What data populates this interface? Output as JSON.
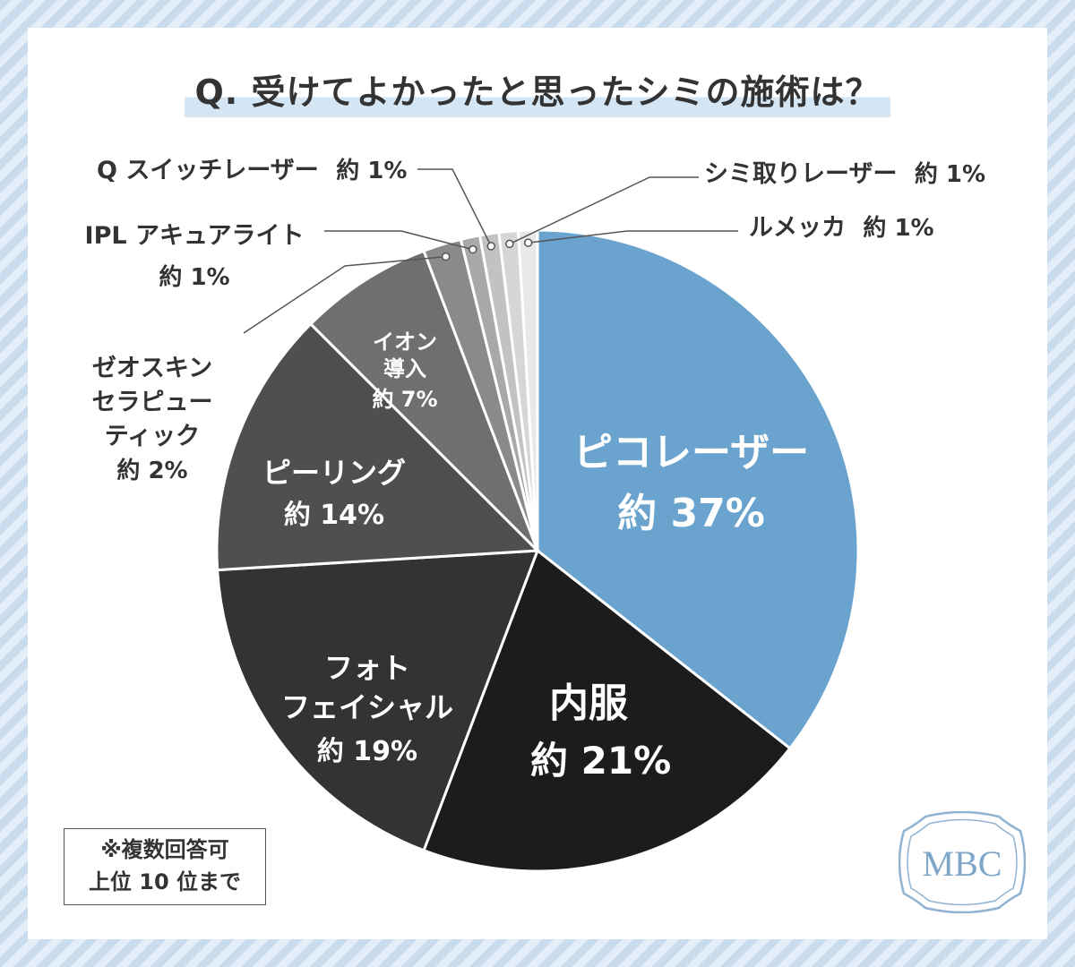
{
  "title": "Q. 受けてよかったと思ったシミの施術は？",
  "note": {
    "line1": "※複数回答可",
    "line2": "上位 10 位まで"
  },
  "logo": {
    "text": "MBC"
  },
  "colors": {
    "accent": "#6aa3cd",
    "background_stripe": "#c9dcee",
    "title_highlight": "#d4e5f4"
  },
  "chart_data": {
    "type": "pie",
    "title": "Q. 受けてよかったと思ったシミの施術は？",
    "slices": [
      {
        "label": "ピコレーザー",
        "value": 37,
        "value_label": "約 37%",
        "color": "#6aa3cd"
      },
      {
        "label": "内服",
        "value": 21,
        "value_label": "約 21%",
        "color": "#1c1c1c"
      },
      {
        "label": "フォト\nフェイシャル",
        "value": 19,
        "value_label": "約 19%",
        "color": "#333333"
      },
      {
        "label": "ピーリング",
        "value": 14,
        "value_label": "約 14%",
        "color": "#4f4f4f"
      },
      {
        "label": "イオン\n導入",
        "value": 7,
        "value_label": "約 7%",
        "color": "#6f6f6f"
      },
      {
        "label": "ゼオスキン\nセラピュー\nティック",
        "value": 2,
        "value_label": "約 2%",
        "color": "#8a8a8a"
      },
      {
        "label": "IPL アキュアライト",
        "value": 1,
        "value_label": "約 1%",
        "color": "#a8a8a8"
      },
      {
        "label": "Q スイッチレーザー",
        "value": 1,
        "value_label": "約 1%",
        "color": "#c2c2c2"
      },
      {
        "label": "シミ取りレーザー",
        "value": 1,
        "value_label": "約 1%",
        "color": "#d6d6d6"
      },
      {
        "label": "ルメッカ",
        "value": 1,
        "value_label": "約 1%",
        "color": "#e8e8e8"
      }
    ]
  }
}
